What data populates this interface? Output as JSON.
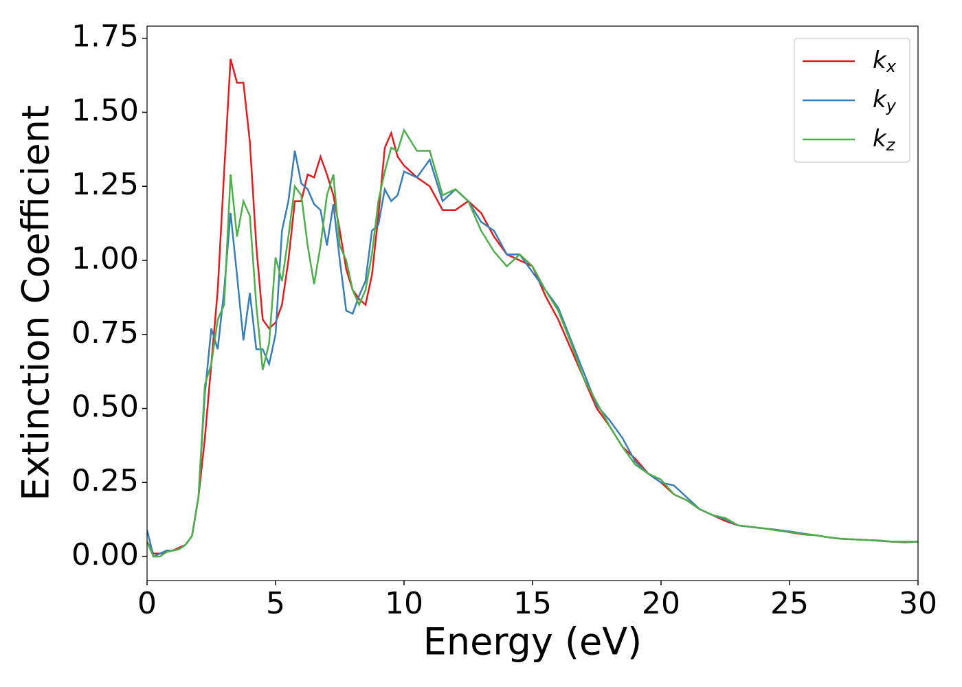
{
  "chart_data": {
    "type": "line",
    "xlabel": "Energy (eV)",
    "ylabel": "Extinction Coefficient",
    "x": [
      0,
      0.25,
      0.5,
      0.75,
      1,
      1.25,
      1.5,
      1.75,
      2,
      2.25,
      2.5,
      2.75,
      3,
      3.25,
      3.5,
      3.75,
      4,
      4.25,
      4.5,
      4.75,
      5,
      5.25,
      5.5,
      5.75,
      6,
      6.25,
      6.5,
      6.75,
      7,
      7.25,
      7.5,
      7.75,
      8,
      8.25,
      8.5,
      8.75,
      9,
      9.25,
      9.5,
      9.75,
      10,
      10.5,
      11,
      11.5,
      12,
      12.5,
      13,
      13.5,
      14,
      14.5,
      15,
      15.5,
      16,
      16.5,
      17,
      17.5,
      18,
      18.5,
      19,
      19.5,
      20,
      20.5,
      21,
      21.5,
      22,
      22.5,
      23,
      23.5,
      24,
      24.5,
      25,
      25.5,
      26,
      26.5,
      27,
      27.5,
      28,
      28.5,
      29,
      29.5,
      30
    ],
    "series": [
      {
        "name": "kx",
        "color": "#e41a1c",
        "values": [
          0.05,
          0.01,
          0.01,
          0.015,
          0.02,
          0.03,
          0.04,
          0.07,
          0.2,
          0.4,
          0.65,
          0.9,
          1.3,
          1.68,
          1.6,
          1.6,
          1.4,
          1.05,
          0.8,
          0.77,
          0.79,
          0.85,
          1.0,
          1.2,
          1.2,
          1.29,
          1.28,
          1.35,
          1.29,
          1.22,
          1.1,
          0.97,
          0.9,
          0.87,
          0.85,
          0.95,
          1.15,
          1.38,
          1.43,
          1.35,
          1.32,
          1.28,
          1.25,
          1.17,
          1.17,
          1.2,
          1.16,
          1.08,
          1.02,
          1.0,
          0.98,
          0.88,
          0.8,
          0.7,
          0.6,
          0.5,
          0.44,
          0.37,
          0.33,
          0.28,
          0.25,
          0.21,
          0.19,
          0.16,
          0.14,
          0.12,
          0.105,
          0.1,
          0.095,
          0.09,
          0.082,
          0.075,
          0.072,
          0.065,
          0.06,
          0.058,
          0.056,
          0.053,
          0.05,
          0.048,
          0.05
        ]
      },
      {
        "name": "ky",
        "color": "#377eb8",
        "values": [
          0.09,
          0.0,
          0.01,
          0.02,
          0.02,
          0.025,
          0.04,
          0.07,
          0.2,
          0.55,
          0.77,
          0.7,
          0.9,
          1.16,
          0.95,
          0.73,
          0.89,
          0.7,
          0.7,
          0.65,
          0.75,
          1.1,
          1.2,
          1.37,
          1.26,
          1.24,
          1.19,
          1.17,
          1.05,
          1.19,
          1.0,
          0.83,
          0.82,
          0.88,
          0.93,
          1.1,
          1.12,
          1.24,
          1.2,
          1.22,
          1.3,
          1.28,
          1.34,
          1.2,
          1.24,
          1.2,
          1.13,
          1.1,
          1.02,
          1.02,
          0.96,
          0.9,
          0.84,
          0.73,
          0.62,
          0.51,
          0.46,
          0.4,
          0.32,
          0.28,
          0.25,
          0.24,
          0.2,
          0.16,
          0.14,
          0.125,
          0.105,
          0.1,
          0.095,
          0.09,
          0.085,
          0.078,
          0.072,
          0.065,
          0.06,
          0.058,
          0.056,
          0.054,
          0.05,
          0.05,
          0.05
        ]
      },
      {
        "name": "kz",
        "color": "#4daf4a",
        "values": [
          0.05,
          0.0,
          0.0,
          0.015,
          0.02,
          0.025,
          0.04,
          0.07,
          0.2,
          0.58,
          0.65,
          0.8,
          0.85,
          1.29,
          1.08,
          1.2,
          1.15,
          0.85,
          0.63,
          0.72,
          1.01,
          0.93,
          1.08,
          1.25,
          1.22,
          1.05,
          0.92,
          1.05,
          1.22,
          1.29,
          1.05,
          1.0,
          0.9,
          0.85,
          0.9,
          1.02,
          1.2,
          1.3,
          1.38,
          1.37,
          1.44,
          1.37,
          1.37,
          1.22,
          1.24,
          1.2,
          1.1,
          1.03,
          0.98,
          1.02,
          0.98,
          0.9,
          0.83,
          0.72,
          0.6,
          0.52,
          0.44,
          0.37,
          0.31,
          0.28,
          0.26,
          0.21,
          0.19,
          0.16,
          0.14,
          0.13,
          0.105,
          0.1,
          0.095,
          0.088,
          0.083,
          0.076,
          0.072,
          0.065,
          0.06,
          0.058,
          0.056,
          0.053,
          0.05,
          0.05,
          0.05
        ]
      }
    ],
    "xlim": [
      0,
      30
    ],
    "xticks": [
      0,
      5,
      10,
      15,
      20,
      25,
      30
    ],
    "ylim": [
      -0.081,
      1.791
    ],
    "yticks": [
      {
        "value": 0,
        "label": "0.00"
      },
      {
        "value": 0.25,
        "label": "0.25"
      },
      {
        "value": 0.5,
        "label": "0.50"
      },
      {
        "value": 0.75,
        "label": "0.75"
      },
      {
        "value": 1,
        "label": "1.00"
      },
      {
        "value": 1.25,
        "label": "1.25"
      },
      {
        "value": 1.5,
        "label": "1.50"
      },
      {
        "value": 1.75,
        "label": "1.75"
      }
    ],
    "legend": "upper right"
  }
}
